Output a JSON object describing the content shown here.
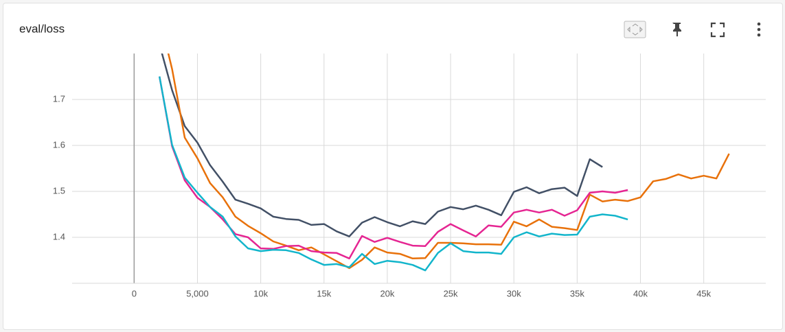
{
  "chart_data": {
    "type": "line",
    "title": "eval/loss",
    "x": [
      2000,
      3000,
      4000,
      5000,
      6000,
      7000,
      8000,
      9000,
      10000,
      11000,
      12000,
      13000,
      14000,
      15000,
      16000,
      17000,
      18000,
      19000,
      20000,
      21000,
      22000,
      23000,
      24000,
      25000,
      26000,
      27000,
      28000,
      29000,
      30000,
      31000,
      32000,
      33000,
      34000,
      35000,
      36000,
      37000,
      38000,
      39000,
      40000,
      41000,
      42000,
      43000,
      44000,
      45000,
      46000,
      47000
    ],
    "series": [
      {
        "color": "#425066",
        "values": [
          1.82,
          1.72,
          1.642,
          1.606,
          1.557,
          1.521,
          1.482,
          1.473,
          1.463,
          1.445,
          1.44,
          1.438,
          1.427,
          1.429,
          1.413,
          1.402,
          1.432,
          1.444,
          1.433,
          1.424,
          1.435,
          1.429,
          1.456,
          1.466,
          1.461,
          1.469,
          1.46,
          1.448,
          1.499,
          1.509,
          1.496,
          1.505,
          1.508,
          1.49,
          1.57,
          1.553,
          null,
          null,
          null,
          null,
          null,
          null,
          null,
          null,
          null,
          null
        ]
      },
      {
        "color": "#e8710a",
        "values": [
          1.88,
          1.766,
          1.617,
          1.572,
          1.518,
          1.487,
          1.445,
          1.425,
          1.409,
          1.391,
          1.382,
          1.372,
          1.378,
          1.363,
          1.348,
          1.333,
          1.351,
          1.378,
          1.367,
          1.364,
          1.354,
          1.355,
          1.388,
          1.388,
          1.387,
          1.385,
          1.385,
          1.384,
          1.434,
          1.424,
          1.439,
          1.423,
          1.42,
          1.416,
          1.493,
          1.478,
          1.482,
          1.479,
          1.487,
          1.522,
          1.527,
          1.537,
          1.528,
          1.534,
          1.528,
          1.582
        ]
      },
      {
        "color": "#e52592",
        "values": [
          1.75,
          1.598,
          1.524,
          1.486,
          1.466,
          1.439,
          1.407,
          1.4,
          1.376,
          1.375,
          1.381,
          1.382,
          1.37,
          1.367,
          1.366,
          1.354,
          1.403,
          1.39,
          1.399,
          1.39,
          1.382,
          1.381,
          1.412,
          1.429,
          1.415,
          1.402,
          1.426,
          1.423,
          1.454,
          1.46,
          1.454,
          1.46,
          1.447,
          1.459,
          1.497,
          1.5,
          1.497,
          1.503,
          null,
          null,
          null,
          null,
          null,
          null,
          null,
          null
        ]
      },
      {
        "color": "#12b5cb",
        "values": [
          1.75,
          1.601,
          1.53,
          1.497,
          1.466,
          1.445,
          1.402,
          1.376,
          1.37,
          1.373,
          1.372,
          1.366,
          1.352,
          1.34,
          1.342,
          1.335,
          1.364,
          1.342,
          1.349,
          1.346,
          1.34,
          1.328,
          1.366,
          1.387,
          1.37,
          1.367,
          1.367,
          1.364,
          1.4,
          1.411,
          1.402,
          1.408,
          1.405,
          1.406,
          1.445,
          1.45,
          1.447,
          1.439,
          null,
          null,
          null,
          null,
          null,
          null,
          null,
          null
        ]
      }
    ],
    "xlim": [
      -4900,
      49900
    ],
    "xticks": [
      0,
      {
        "value": 5000,
        "label": "5,000"
      },
      {
        "value": 10000,
        "label": "10k"
      },
      {
        "value": 15000,
        "label": "15k"
      },
      {
        "value": 20000,
        "label": "20k"
      },
      {
        "value": 25000,
        "label": "25k"
      },
      {
        "value": 30000,
        "label": "30k"
      },
      {
        "value": 35000,
        "label": "35k"
      },
      {
        "value": 40000,
        "label": "40k"
      },
      {
        "value": 45000,
        "label": "45k"
      }
    ],
    "ylim": [
      1.3,
      1.8
    ],
    "yticks": [
      1.4,
      1.5,
      1.6,
      1.7
    ],
    "grid": true
  }
}
